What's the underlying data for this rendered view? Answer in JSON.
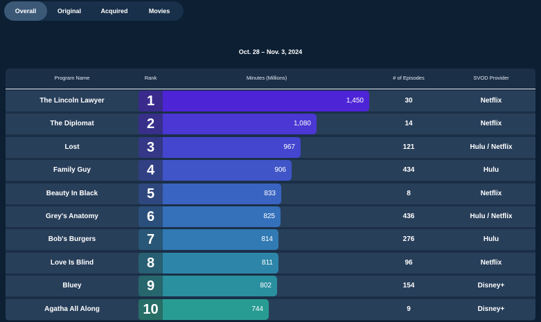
{
  "tabs": [
    {
      "label": "Overall",
      "active": true
    },
    {
      "label": "Original",
      "active": false
    },
    {
      "label": "Acquired",
      "active": false
    },
    {
      "label": "Movies",
      "active": false
    }
  ],
  "date_range": "Oct. 28 – Nov. 3, 2024",
  "columns": [
    "Program Name",
    "Rank",
    "Minutes (Millions)",
    "# of Episodes",
    "SVOD Provider"
  ],
  "colors": {
    "background": "#0c1f33",
    "row": "#283f5a",
    "bar_colors": [
      "#4e25d6",
      "#4a37d4",
      "#4446cf",
      "#3f55c8",
      "#3a64c2",
      "#3570bb",
      "#317ab3",
      "#2d86a9",
      "#2a8f9f",
      "#289c93"
    ],
    "rank_colors": [
      "#3a2a8c",
      "#372f8a",
      "#343886",
      "#313f83",
      "#2e487f",
      "#2b4f7b",
      "#295777",
      "#285f72",
      "#27666d",
      "#276e67"
    ]
  },
  "chart_data": {
    "type": "bar",
    "title": "Oct. 28 – Nov. 3, 2024",
    "xlabel": "Minutes (Millions)",
    "ylabel": "Program Name",
    "xlim": [
      0,
      1450
    ],
    "categories": [
      "The Lincoln Lawyer",
      "The Diplomat",
      "Lost",
      "Family Guy",
      "Beauty In Black",
      "Grey's Anatomy",
      "Bob's Burgers",
      "Love Is Blind",
      "Bluey",
      "Agatha All Along"
    ],
    "values": [
      1450,
      1080,
      967,
      906,
      833,
      825,
      814,
      811,
      802,
      744
    ],
    "value_labels": [
      "1,450",
      "1,080",
      "967",
      "906",
      "833",
      "825",
      "814",
      "811",
      "802",
      "744"
    ],
    "ranks": [
      "1",
      "2",
      "3",
      "4",
      "5",
      "6",
      "7",
      "8",
      "9",
      "10"
    ],
    "episodes": [
      "30",
      "14",
      "121",
      "434",
      "8",
      "436",
      "276",
      "96",
      "154",
      "9"
    ],
    "providers": [
      "Netflix",
      "Netflix",
      "Hulu / Netflix",
      "Hulu",
      "Netflix",
      "Hulu / Netflix",
      "Hulu",
      "Netflix",
      "Disney+",
      "Disney+"
    ]
  }
}
